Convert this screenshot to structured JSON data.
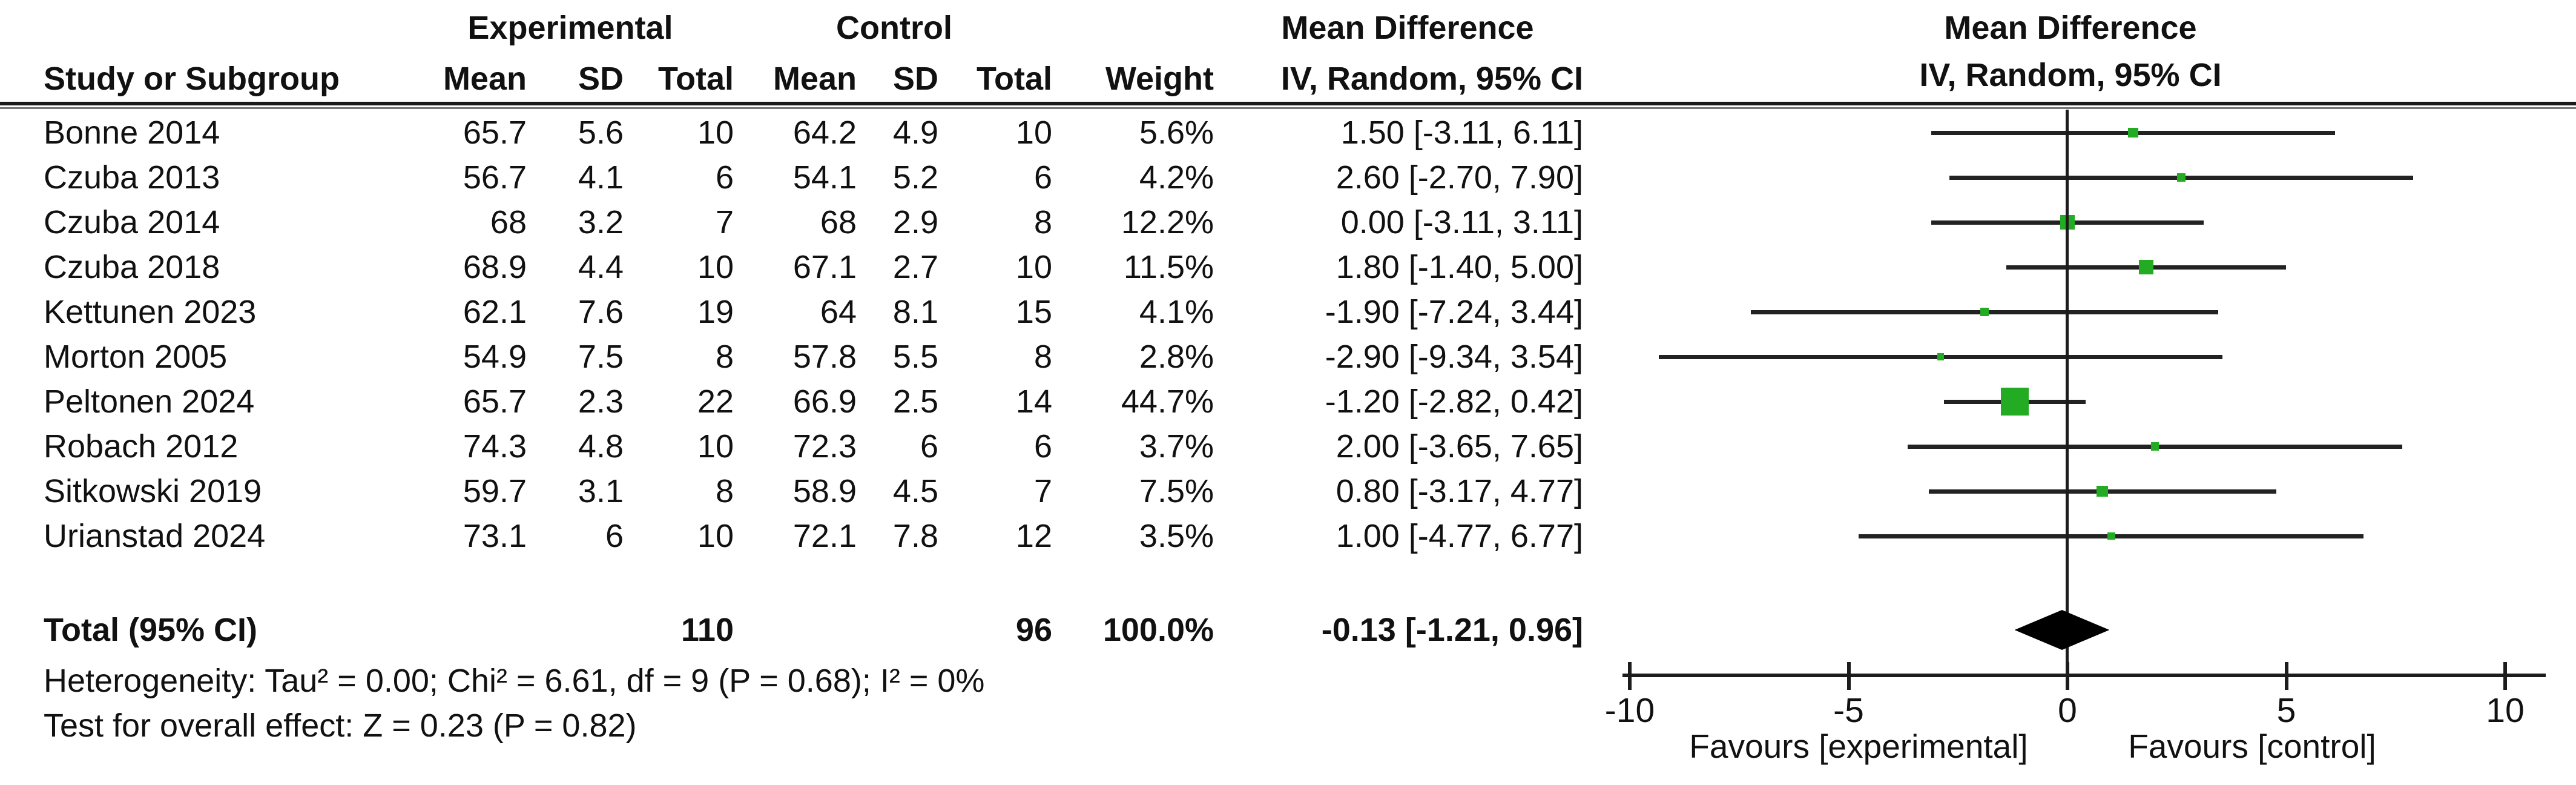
{
  "figure": {
    "group_experimental": "Experimental",
    "group_control": "Control",
    "mean_difference": "Mean Difference",
    "iv_random": "IV, Random, 95% CI",
    "col_study": "Study or Subgroup",
    "col_mean": "Mean",
    "col_sd": "SD",
    "col_total": "Total",
    "col_weight": "Weight"
  },
  "chart_data": {
    "type": "scatter",
    "subtype": "forest-plot",
    "title": "Mean Difference",
    "method": "IV, Random, 95% CI",
    "xlim": [
      -10.2,
      10.9
    ],
    "studies": [
      {
        "name": "Bonne 2014",
        "mean_e": "65.7",
        "sd_e": "5.6",
        "n_e": "10",
        "mean_c": "64.2",
        "sd_c": "4.9",
        "n_c": "10",
        "weight": "5.6%",
        "md_text": "1.50 [-3.11, 6.11]",
        "md": 1.5,
        "lo": -3.11,
        "hi": 6.11
      },
      {
        "name": "Czuba 2013",
        "mean_e": "56.7",
        "sd_e": "4.1",
        "n_e": "6",
        "mean_c": "54.1",
        "sd_c": "5.2",
        "n_c": "6",
        "weight": "4.2%",
        "md_text": "2.60 [-2.70, 7.90]",
        "md": 2.6,
        "lo": -2.7,
        "hi": 7.9
      },
      {
        "name": "Czuba 2014",
        "mean_e": "68",
        "sd_e": "3.2",
        "n_e": "7",
        "mean_c": "68",
        "sd_c": "2.9",
        "n_c": "8",
        "weight": "12.2%",
        "md_text": "0.00 [-3.11, 3.11]",
        "md": 0.0,
        "lo": -3.11,
        "hi": 3.11
      },
      {
        "name": "Czuba 2018",
        "mean_e": "68.9",
        "sd_e": "4.4",
        "n_e": "10",
        "mean_c": "67.1",
        "sd_c": "2.7",
        "n_c": "10",
        "weight": "11.5%",
        "md_text": "1.80 [-1.40, 5.00]",
        "md": 1.8,
        "lo": -1.4,
        "hi": 5.0
      },
      {
        "name": "Kettunen 2023",
        "mean_e": "62.1",
        "sd_e": "7.6",
        "n_e": "19",
        "mean_c": "64",
        "sd_c": "8.1",
        "n_c": "15",
        "weight": "4.1%",
        "md_text": "-1.90 [-7.24, 3.44]",
        "md": -1.9,
        "lo": -7.24,
        "hi": 3.44
      },
      {
        "name": "Morton 2005",
        "mean_e": "54.9",
        "sd_e": "7.5",
        "n_e": "8",
        "mean_c": "57.8",
        "sd_c": "5.5",
        "n_c": "8",
        "weight": "2.8%",
        "md_text": "-2.90 [-9.34, 3.54]",
        "md": -2.9,
        "lo": -9.34,
        "hi": 3.54
      },
      {
        "name": "Peltonen 2024",
        "mean_e": "65.7",
        "sd_e": "2.3",
        "n_e": "22",
        "mean_c": "66.9",
        "sd_c": "2.5",
        "n_c": "14",
        "weight": "44.7%",
        "md_text": "-1.20 [-2.82, 0.42]",
        "md": -1.2,
        "lo": -2.82,
        "hi": 0.42
      },
      {
        "name": "Robach 2012",
        "mean_e": "74.3",
        "sd_e": "4.8",
        "n_e": "10",
        "mean_c": "72.3",
        "sd_c": "6",
        "n_c": "6",
        "weight": "3.7%",
        "md_text": "2.00 [-3.65, 7.65]",
        "md": 2.0,
        "lo": -3.65,
        "hi": 7.65
      },
      {
        "name": "Sitkowski 2019",
        "mean_e": "59.7",
        "sd_e": "3.1",
        "n_e": "8",
        "mean_c": "58.9",
        "sd_c": "4.5",
        "n_c": "7",
        "weight": "7.5%",
        "md_text": "0.80 [-3.17, 4.77]",
        "md": 0.8,
        "lo": -3.17,
        "hi": 4.77
      },
      {
        "name": "Urianstad 2024",
        "mean_e": "73.1",
        "sd_e": "6",
        "n_e": "10",
        "mean_c": "72.1",
        "sd_c": "7.8",
        "n_c": "12",
        "weight": "3.5%",
        "md_text": "1.00 [-4.77, 6.77]",
        "md": 1.0,
        "lo": -4.77,
        "hi": 6.77
      }
    ],
    "total": {
      "label": "Total (95% CI)",
      "n_e": "110",
      "n_c": "96",
      "weight": "100.0%",
      "md_text": "-0.13 [-1.21, 0.96]",
      "md": -0.13,
      "lo": -1.21,
      "hi": 0.96
    },
    "heterogeneity": "Heterogeneity: Tau² = 0.00; Chi² = 6.61, df = 9 (P = 0.68); I² = 0%",
    "overall_effect": "Test for overall effect: Z = 0.23 (P = 0.82)",
    "axis": {
      "ticks": [
        {
          "v": -10,
          "label": "-10"
        },
        {
          "v": -5,
          "label": "-5"
        },
        {
          "v": 0,
          "label": "0"
        },
        {
          "v": 5,
          "label": "5"
        },
        {
          "v": 10,
          "label": "10"
        }
      ]
    },
    "favours_left": "Favours [experimental]",
    "favours_right": "Favours [control]",
    "colors": {
      "square": "#23AC23",
      "line": "#222222",
      "diamond": "#000000",
      "axis": "#1c1c1c"
    }
  }
}
